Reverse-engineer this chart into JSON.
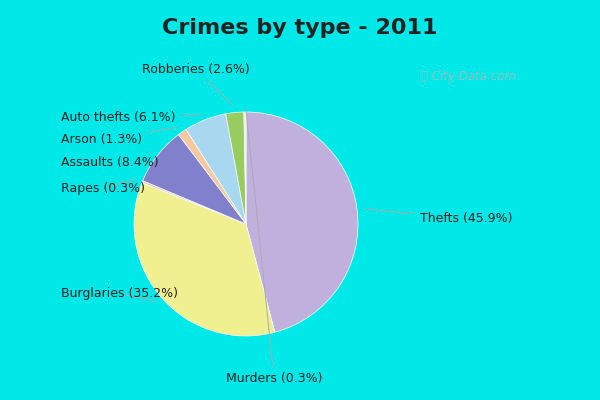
{
  "title": "Crimes by type - 2011",
  "labels": [
    "Thefts",
    "Burglaries",
    "Rapes",
    "Assaults",
    "Arson",
    "Auto thefts",
    "Robberies",
    "Murders"
  ],
  "values": [
    45.9,
    35.2,
    0.3,
    8.4,
    1.3,
    6.1,
    2.6,
    0.3
  ],
  "colors": [
    "#c0b0de",
    "#f0f090",
    "#f0c0c0",
    "#8080cc",
    "#f5c8a0",
    "#a8d8f0",
    "#98cc60",
    "#e8e8e8"
  ],
  "title_fontsize": 16,
  "title_color": "#222222",
  "background_color_outer": "#00e8e8",
  "background_color_inner": "#d5eee5",
  "label_fontsize": 9,
  "label_color": "#222222",
  "startangle": 90,
  "watermark": "City-Data.com"
}
